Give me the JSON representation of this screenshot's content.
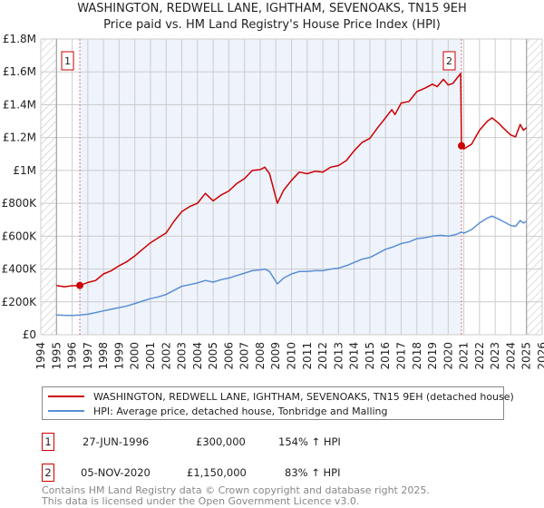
{
  "chart_data": {
    "type": "line",
    "title": "WASHINGTON, REDWELL LANE, IGHTHAM, SEVENOAKS, TN15 9EH",
    "subtitle": "Price paid vs. HM Land Registry's House Price Index (HPI)",
    "xlim": [
      1994,
      2026
    ],
    "ylim": [
      0,
      1800000
    ],
    "x_ticks": [
      "1994",
      "1995",
      "1996",
      "1997",
      "1998",
      "1999",
      "2000",
      "2001",
      "2002",
      "2003",
      "2004",
      "2005",
      "2006",
      "2007",
      "2008",
      "2009",
      "2010",
      "2011",
      "2012",
      "2013",
      "2014",
      "2015",
      "2016",
      "2017",
      "2018",
      "2019",
      "2020",
      "2021",
      "2022",
      "2023",
      "2024",
      "2025",
      "2026"
    ],
    "y_ticks": [
      {
        "value": 0,
        "label": "£0"
      },
      {
        "value": 200000,
        "label": "£200K"
      },
      {
        "value": 400000,
        "label": "£400K"
      },
      {
        "value": 600000,
        "label": "£600K"
      },
      {
        "value": 800000,
        "label": "£800K"
      },
      {
        "value": 1000000,
        "label": "£1M"
      },
      {
        "value": 1200000,
        "label": "£1.2M"
      },
      {
        "value": 1400000,
        "label": "£1.4M"
      },
      {
        "value": 1600000,
        "label": "£1.6M"
      },
      {
        "value": 1800000,
        "label": "£1.8M"
      }
    ],
    "grid": true,
    "data_range": [
      1995,
      2025
    ],
    "series": [
      {
        "name": "WASHINGTON, REDWELL LANE, IGHTHAM, SEVENOAKS, TN15 9EH (detached house)",
        "color": "#cc0000",
        "points": [
          [
            1995,
            300000
          ],
          [
            1995.5,
            292000
          ],
          [
            1996,
            298000
          ],
          [
            1996.49,
            300000
          ],
          [
            1997,
            318000
          ],
          [
            1997.5,
            330000
          ],
          [
            1998,
            370000
          ],
          [
            1998.5,
            390000
          ],
          [
            1999,
            420000
          ],
          [
            1999.5,
            445000
          ],
          [
            2000,
            480000
          ],
          [
            2000.5,
            520000
          ],
          [
            2001,
            560000
          ],
          [
            2001.5,
            590000
          ],
          [
            2002,
            620000
          ],
          [
            2002.5,
            690000
          ],
          [
            2003,
            750000
          ],
          [
            2003.5,
            780000
          ],
          [
            2004,
            800000
          ],
          [
            2004.5,
            860000
          ],
          [
            2005,
            815000
          ],
          [
            2005.5,
            850000
          ],
          [
            2006,
            875000
          ],
          [
            2006.5,
            920000
          ],
          [
            2007,
            950000
          ],
          [
            2007.5,
            1000000
          ],
          [
            2008,
            1005000
          ],
          [
            2008.3,
            1020000
          ],
          [
            2008.6,
            980000
          ],
          [
            2009.1,
            800000
          ],
          [
            2009.5,
            880000
          ],
          [
            2010,
            940000
          ],
          [
            2010.5,
            990000
          ],
          [
            2011,
            980000
          ],
          [
            2011.5,
            995000
          ],
          [
            2012,
            990000
          ],
          [
            2012.5,
            1020000
          ],
          [
            2013,
            1030000
          ],
          [
            2013.5,
            1060000
          ],
          [
            2014,
            1120000
          ],
          [
            2014.5,
            1170000
          ],
          [
            2015,
            1195000
          ],
          [
            2015.5,
            1260000
          ],
          [
            2016,
            1320000
          ],
          [
            2016.4,
            1370000
          ],
          [
            2016.6,
            1340000
          ],
          [
            2017,
            1410000
          ],
          [
            2017.5,
            1420000
          ],
          [
            2018,
            1480000
          ],
          [
            2018.5,
            1500000
          ],
          [
            2019,
            1525000
          ],
          [
            2019.3,
            1510000
          ],
          [
            2019.7,
            1555000
          ],
          [
            2020,
            1520000
          ],
          [
            2020.3,
            1530000
          ],
          [
            2020.8,
            1590000
          ],
          [
            2020.85,
            1150000
          ],
          [
            2021,
            1130000
          ],
          [
            2021.5,
            1160000
          ],
          [
            2022,
            1245000
          ],
          [
            2022.5,
            1300000
          ],
          [
            2022.8,
            1320000
          ],
          [
            2023.2,
            1290000
          ],
          [
            2023.5,
            1260000
          ],
          [
            2024,
            1215000
          ],
          [
            2024.3,
            1205000
          ],
          [
            2024.6,
            1280000
          ],
          [
            2024.8,
            1245000
          ],
          [
            2025,
            1260000
          ]
        ]
      },
      {
        "name": "HPI: Average price, detached house, Tonbridge and Malling",
        "color": "#5b8fd4",
        "points": [
          [
            1995,
            120000
          ],
          [
            1995.5,
            118000
          ],
          [
            1996,
            117000
          ],
          [
            1996.5,
            120000
          ],
          [
            1997,
            125000
          ],
          [
            1997.5,
            135000
          ],
          [
            1998,
            145000
          ],
          [
            1998.5,
            155000
          ],
          [
            1999,
            165000
          ],
          [
            1999.5,
            175000
          ],
          [
            2000,
            190000
          ],
          [
            2000.5,
            205000
          ],
          [
            2001,
            220000
          ],
          [
            2001.5,
            230000
          ],
          [
            2002,
            245000
          ],
          [
            2002.5,
            270000
          ],
          [
            2003,
            295000
          ],
          [
            2003.5,
            305000
          ],
          [
            2004,
            315000
          ],
          [
            2004.5,
            330000
          ],
          [
            2005,
            320000
          ],
          [
            2005.5,
            335000
          ],
          [
            2006,
            345000
          ],
          [
            2006.5,
            360000
          ],
          [
            2007,
            375000
          ],
          [
            2007.5,
            390000
          ],
          [
            2008,
            395000
          ],
          [
            2008.3,
            400000
          ],
          [
            2008.6,
            385000
          ],
          [
            2009.1,
            310000
          ],
          [
            2009.5,
            345000
          ],
          [
            2010,
            370000
          ],
          [
            2010.5,
            385000
          ],
          [
            2011,
            385000
          ],
          [
            2011.5,
            390000
          ],
          [
            2012,
            390000
          ],
          [
            2012.5,
            400000
          ],
          [
            2013,
            405000
          ],
          [
            2013.5,
            420000
          ],
          [
            2014,
            440000
          ],
          [
            2014.5,
            460000
          ],
          [
            2015,
            470000
          ],
          [
            2015.5,
            495000
          ],
          [
            2016,
            520000
          ],
          [
            2016.5,
            535000
          ],
          [
            2017,
            555000
          ],
          [
            2017.5,
            565000
          ],
          [
            2018,
            585000
          ],
          [
            2018.5,
            590000
          ],
          [
            2019,
            600000
          ],
          [
            2019.5,
            605000
          ],
          [
            2020,
            600000
          ],
          [
            2020.5,
            610000
          ],
          [
            2020.85,
            625000
          ],
          [
            2021,
            618000
          ],
          [
            2021.5,
            640000
          ],
          [
            2022,
            680000
          ],
          [
            2022.5,
            710000
          ],
          [
            2022.8,
            722000
          ],
          [
            2023.2,
            705000
          ],
          [
            2023.5,
            690000
          ],
          [
            2024,
            665000
          ],
          [
            2024.3,
            660000
          ],
          [
            2024.6,
            695000
          ],
          [
            2024.8,
            680000
          ],
          [
            2025,
            690000
          ]
        ]
      }
    ],
    "annotations": [
      {
        "label": "1",
        "x": 1996.49,
        "y": 300000
      },
      {
        "label": "2",
        "x": 2020.85,
        "y": 1150000
      }
    ]
  },
  "legend": {
    "red_label": "WASHINGTON, REDWELL LANE, IGHTHAM, SEVENOAKS, TN15 9EH (detached house)",
    "blue_label": "HPI: Average price, detached house, Tonbridge and Malling"
  },
  "sales": [
    {
      "num": "1",
      "date": "27-JUN-1996",
      "price": "£300,000",
      "hpi": "154% ↑ HPI"
    },
    {
      "num": "2",
      "date": "05-NOV-2020",
      "price": "£1,150,000",
      "hpi": "83% ↑ HPI"
    }
  ],
  "footer": {
    "line1": "Contains HM Land Registry data © Crown copyright and database right 2025.",
    "line2": "This data is licensed under the Open Government Licence v3.0."
  }
}
